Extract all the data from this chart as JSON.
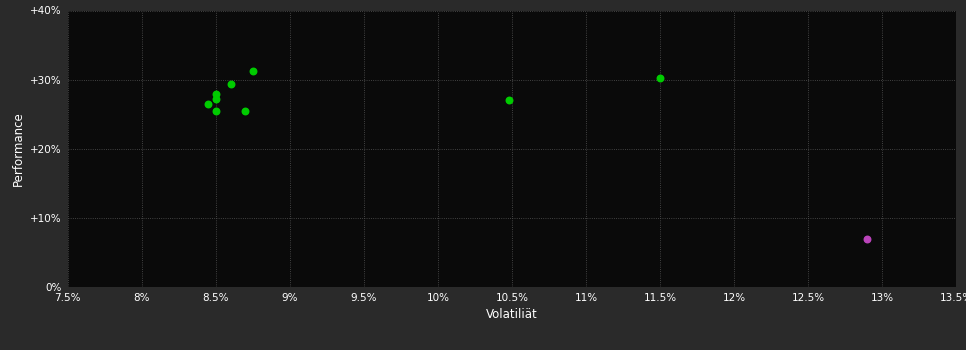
{
  "background_color": "#1a1a1a",
  "plot_bg_color": "#0a0a0a",
  "outer_bg_color": "#2a2a2a",
  "grid_color": "#555555",
  "text_color": "#ffffff",
  "xlabel": "Volatiliät",
  "ylabel": "Performance",
  "xlim": [
    0.075,
    0.135
  ],
  "ylim": [
    0.0,
    0.4
  ],
  "xticks": [
    0.075,
    0.08,
    0.085,
    0.09,
    0.095,
    0.1,
    0.105,
    0.11,
    0.115,
    0.12,
    0.125,
    0.13,
    0.135
  ],
  "yticks": [
    0.0,
    0.1,
    0.2,
    0.3,
    0.4
  ],
  "ytick_labels": [
    "0%",
    "+10%",
    "+20%",
    "+30%",
    "+40%"
  ],
  "xtick_labels": [
    "7.5%",
    "8%",
    "8.5%",
    "9%",
    "9.5%",
    "10%",
    "10.5%",
    "11%",
    "11.5%",
    "12%",
    "12.5%",
    "13%",
    "13.5%"
  ],
  "green_points": [
    [
      0.0875,
      0.312
    ],
    [
      0.086,
      0.293
    ],
    [
      0.085,
      0.279
    ],
    [
      0.085,
      0.272
    ],
    [
      0.0845,
      0.265
    ],
    [
      0.085,
      0.254
    ],
    [
      0.087,
      0.254
    ],
    [
      0.1048,
      0.27
    ],
    [
      0.115,
      0.302
    ]
  ],
  "magenta_points": [
    [
      0.129,
      0.07
    ]
  ],
  "green_color": "#00cc00",
  "magenta_color": "#bb44bb",
  "point_size": 22,
  "font_size_ticks": 7.5,
  "font_size_label": 8.5
}
